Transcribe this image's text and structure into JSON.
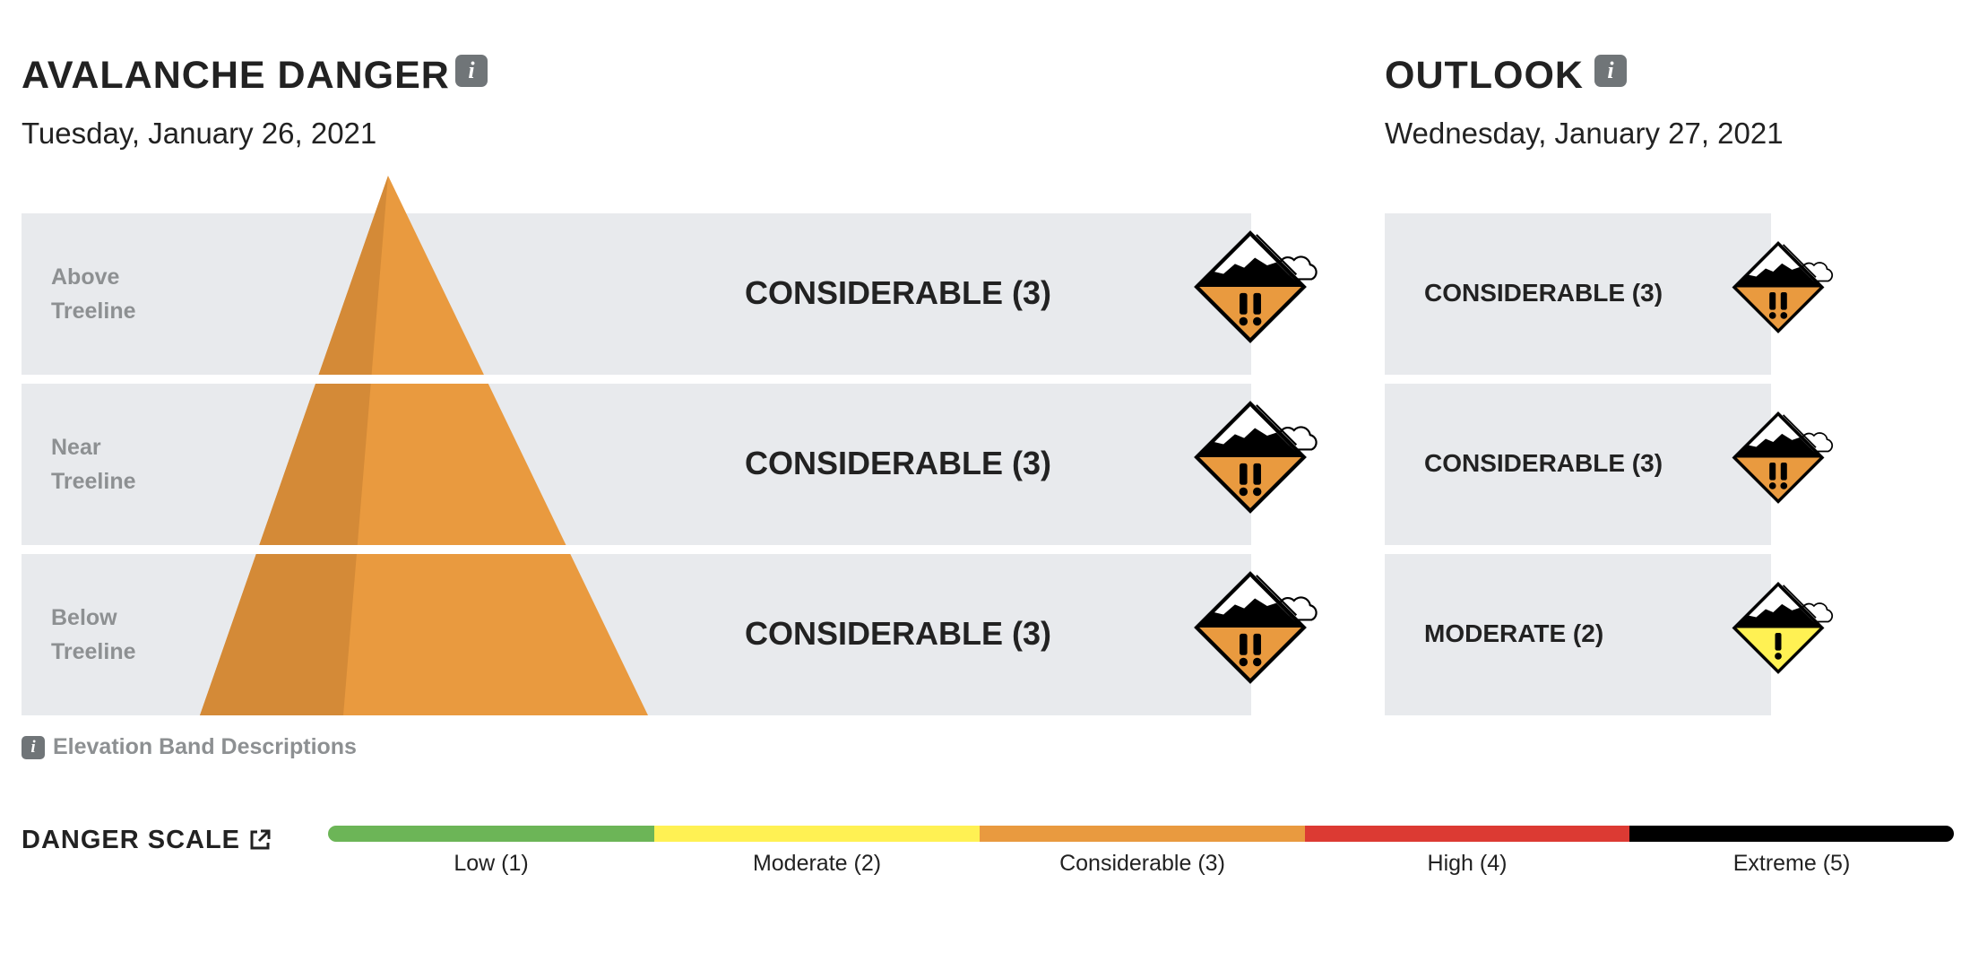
{
  "danger": {
    "title": "AVALANCHE DANGER",
    "date": "Tuesday, January 26, 2021",
    "info_icon": "info-icon",
    "bands": [
      {
        "label": "Above\nTreeline",
        "rating": "CONSIDERABLE (3)",
        "level": 3
      },
      {
        "label": "Near\nTreeline",
        "rating": "CONSIDERABLE (3)",
        "level": 3
      },
      {
        "label": "Below\nTreeline",
        "rating": "CONSIDERABLE (3)",
        "level": 3
      }
    ],
    "pyramid_color": "#e99a3f",
    "pyramid_shade_color": "#d48a37"
  },
  "outlook": {
    "title": "OUTLOOK",
    "date": "Wednesday, January 27, 2021",
    "info_icon": "info-icon",
    "bands": [
      {
        "rating": "CONSIDERABLE (3)",
        "level": 3
      },
      {
        "rating": "CONSIDERABLE (3)",
        "level": 3
      },
      {
        "rating": "MODERATE (2)",
        "level": 2
      }
    ]
  },
  "elevation_link": {
    "label": "Elevation Band Descriptions",
    "icon": "info-icon"
  },
  "scale": {
    "title": "DANGER SCALE",
    "external_icon": "external-link-icon",
    "levels": [
      {
        "label": "Low (1)",
        "color": "#6cb557"
      },
      {
        "label": "Moderate (2)",
        "color": "#fff153"
      },
      {
        "label": "Considerable (3)",
        "color": "#e99a3f"
      },
      {
        "label": "High (4)",
        "color": "#dc3a33"
      },
      {
        "label": "Extreme (5)",
        "color": "#000000"
      }
    ]
  }
}
